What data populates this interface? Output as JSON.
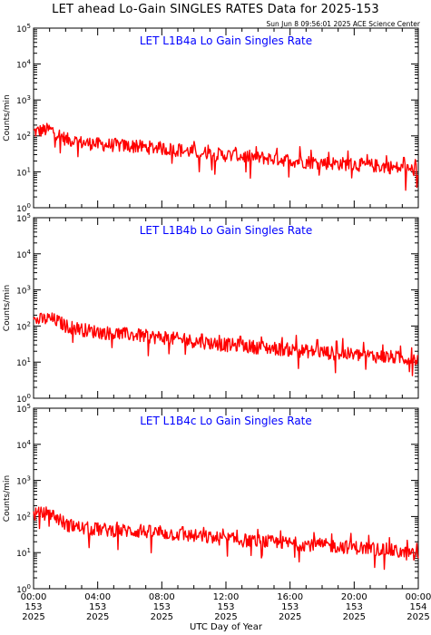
{
  "page": {
    "title": "LET ahead Lo-Gain SINGLES RATES Data for 2025-153",
    "timestamp": "Sun Jun  8 09:56:01 2025 ACE Science Center"
  },
  "colors": {
    "series": "#ff0000",
    "panel_title": "#0000ff",
    "axes": "#000000"
  },
  "chart_data": [
    {
      "type": "line",
      "title": "LET L1B4a Lo Gain Singles Rate",
      "ylabel": "Counts/min",
      "yscale": "log",
      "ylim": [
        1,
        100000
      ],
      "yticks": [
        "10^0",
        "10^1",
        "10^2",
        "10^3",
        "10^4",
        "10^5"
      ],
      "x_unit": "hours UTC",
      "xlim": [
        0,
        24
      ],
      "x": [
        0,
        0.5,
        1,
        1.5,
        2,
        3,
        4,
        5,
        6,
        7,
        8,
        9,
        10,
        11,
        12,
        13,
        14,
        15,
        16,
        17,
        18,
        19,
        20,
        21,
        22,
        23,
        24
      ],
      "values": [
        130,
        140,
        150,
        115,
        80,
        65,
        58,
        55,
        52,
        48,
        45,
        40,
        36,
        32,
        29,
        27,
        25,
        23,
        21,
        19,
        18,
        17,
        16,
        15,
        14,
        12,
        11
      ],
      "spikes": [
        [
          1.2,
          170
        ],
        [
          2.6,
          95
        ],
        [
          3.7,
          80
        ],
        [
          5.1,
          85
        ],
        [
          6.4,
          75
        ],
        [
          7.8,
          65
        ],
        [
          9.1,
          60
        ],
        [
          10.0,
          70
        ],
        [
          10.9,
          55
        ],
        [
          12.6,
          48
        ],
        [
          13.9,
          50
        ],
        [
          15.2,
          45
        ],
        [
          16.6,
          50
        ],
        [
          17.3,
          40
        ],
        [
          18.4,
          35
        ],
        [
          19.6,
          38
        ],
        [
          20.8,
          30
        ],
        [
          22.0,
          28
        ],
        [
          23.1,
          25
        ],
        [
          23.8,
          22
        ]
      ]
    },
    {
      "type": "line",
      "title": "LET L1B4b Lo Gain Singles Rate",
      "ylabel": "Counts/min",
      "yscale": "log",
      "ylim": [
        1,
        100000
      ],
      "yticks": [
        "10^0",
        "10^1",
        "10^2",
        "10^3",
        "10^4",
        "10^5"
      ],
      "x_unit": "hours UTC",
      "xlim": [
        0,
        24
      ],
      "x": [
        0,
        0.5,
        1,
        1.5,
        2,
        3,
        4,
        5,
        6,
        7,
        8,
        9,
        10,
        11,
        12,
        13,
        14,
        15,
        16,
        17,
        18,
        19,
        20,
        21,
        22,
        23,
        24
      ],
      "values": [
        140,
        150,
        160,
        135,
        100,
        80,
        68,
        62,
        58,
        52,
        48,
        43,
        38,
        34,
        30,
        28,
        26,
        24,
        22,
        20,
        19,
        17,
        16,
        15,
        14,
        13,
        12
      ],
      "spikes": [
        [
          1.0,
          175
        ],
        [
          2.8,
          110
        ],
        [
          4.0,
          90
        ],
        [
          5.3,
          85
        ],
        [
          6.6,
          78
        ],
        [
          8.2,
          70
        ],
        [
          9.4,
          62
        ],
        [
          10.5,
          60
        ],
        [
          11.6,
          55
        ],
        [
          12.9,
          52
        ],
        [
          14.2,
          50
        ],
        [
          15.5,
          48
        ],
        [
          16.4,
          55
        ],
        [
          17.7,
          42
        ],
        [
          18.9,
          38
        ],
        [
          19.3,
          45
        ],
        [
          20.6,
          35
        ],
        [
          21.8,
          30
        ],
        [
          22.9,
          28
        ],
        [
          23.6,
          25
        ]
      ]
    },
    {
      "type": "line",
      "title": "LET L1B4c Lo Gain Singles Rate",
      "ylabel": "Counts/min",
      "yscale": "log",
      "ylim": [
        1,
        100000
      ],
      "yticks": [
        "10^0",
        "10^1",
        "10^2",
        "10^3",
        "10^4",
        "10^5"
      ],
      "x_unit": "hours UTC",
      "xlim": [
        0,
        24
      ],
      "x": [
        0,
        0.5,
        1,
        1.5,
        2,
        3,
        4,
        5,
        6,
        7,
        8,
        9,
        10,
        11,
        12,
        13,
        14,
        15,
        16,
        17,
        18,
        19,
        20,
        21,
        22,
        23,
        24
      ],
      "values": [
        115,
        120,
        125,
        90,
        60,
        48,
        44,
        42,
        40,
        38,
        35,
        32,
        29,
        26,
        24,
        22,
        21,
        19,
        18,
        17,
        16,
        15,
        14,
        13,
        12,
        10,
        8
      ],
      "spikes": [
        [
          0.9,
          150
        ],
        [
          2.5,
          75
        ],
        [
          3.9,
          65
        ],
        [
          5.2,
          70
        ],
        [
          6.7,
          60
        ],
        [
          7.9,
          55
        ],
        [
          9.3,
          52
        ],
        [
          10.6,
          50
        ],
        [
          11.8,
          45
        ],
        [
          12.7,
          42
        ],
        [
          14.0,
          44
        ],
        [
          15.4,
          40
        ],
        [
          16.3,
          45
        ],
        [
          17.5,
          36
        ],
        [
          18.6,
          33
        ],
        [
          19.8,
          34
        ],
        [
          20.9,
          30
        ],
        [
          22.2,
          26
        ],
        [
          23.3,
          22
        ],
        [
          23.9,
          18
        ]
      ]
    }
  ],
  "x_axis": {
    "tick_labels": [
      [
        "00:00",
        "153",
        "2025"
      ],
      [
        "04:00",
        "153",
        "2025"
      ],
      [
        "08:00",
        "153",
        "2025"
      ],
      [
        "12:00",
        "153",
        "2025"
      ],
      [
        "16:00",
        "153",
        "2025"
      ],
      [
        "20:00",
        "153",
        "2025"
      ],
      [
        "00:00",
        "154",
        "2025"
      ]
    ],
    "label": "UTC Day of Year"
  }
}
